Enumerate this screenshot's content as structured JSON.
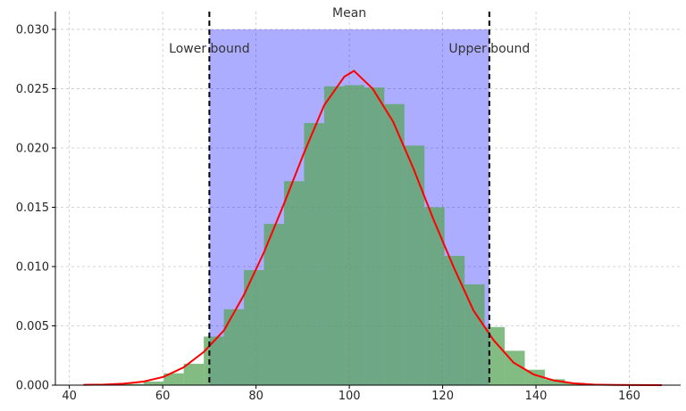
{
  "chart_data": {
    "type": "bar",
    "title": "",
    "xlabel": "",
    "ylabel": "",
    "xlim": [
      37,
      171
    ],
    "ylim": [
      0,
      0.0315
    ],
    "x_ticks": [
      40,
      60,
      80,
      100,
      120,
      140,
      160
    ],
    "y_ticks": [
      0.0,
      0.005,
      0.01,
      0.015,
      0.02,
      0.025,
      0.03
    ],
    "x_tick_labels": [
      "40",
      "60",
      "80",
      "100",
      "120",
      "140",
      "160"
    ],
    "y_tick_labels": [
      "0.000",
      "0.005",
      "0.010",
      "0.015",
      "0.020",
      "0.025",
      "0.030"
    ],
    "grid": true,
    "histogram": {
      "bin_edges": [
        43.0,
        47.3,
        51.6,
        55.9,
        60.2,
        64.5,
        68.8,
        73.1,
        77.4,
        81.7,
        86.0,
        90.3,
        94.6,
        98.9,
        103.2,
        107.5,
        111.8,
        116.1,
        120.4,
        124.7,
        129.0,
        133.3,
        137.6,
        141.9,
        146.2,
        150.5,
        154.8,
        159.1,
        163.4,
        167.7
      ],
      "density": [
        2e-05,
        5e-05,
        0.0001,
        0.0003,
        0.001,
        0.0018,
        0.0041,
        0.0064,
        0.0097,
        0.0136,
        0.0172,
        0.0221,
        0.0252,
        0.0253,
        0.0251,
        0.0237,
        0.0202,
        0.015,
        0.0109,
        0.0085,
        0.0049,
        0.0029,
        0.0013,
        0.0005,
        0.0002,
        0.0001,
        3e-05,
        1e-05,
        1e-05
      ],
      "color": "#5aa65a"
    },
    "series": [
      {
        "type": "line",
        "color": "#ff0000",
        "x": [
          43.0,
          47.3,
          51.6,
          55.9,
          60.2,
          64.5,
          68.8,
          73.1,
          77.4,
          81.7,
          86.0,
          90.3,
          94.6,
          98.9,
          101.0,
          105.0,
          109.4,
          113.7,
          118.0,
          122.3,
          126.6,
          130.9,
          135.2,
          139.5,
          143.8,
          148.1,
          152.4,
          156.7,
          161.0,
          167.0
        ],
        "y": [
          3e-05,
          5e-05,
          0.00012,
          0.0003,
          0.0007,
          0.0015,
          0.0028,
          0.0046,
          0.0076,
          0.0112,
          0.0153,
          0.0196,
          0.0236,
          0.026,
          0.0265,
          0.025,
          0.0222,
          0.0183,
          0.014,
          0.01,
          0.0063,
          0.0038,
          0.0019,
          0.0009,
          0.0004,
          0.00015,
          5e-05,
          2e-05,
          1e-05,
          0.0
        ]
      }
    ],
    "shaded_region": {
      "x_from": 70,
      "x_to": 130,
      "y_to": 0.03,
      "color": "#0000ff",
      "opacity": 0.32
    },
    "vlines": [
      {
        "x": 70,
        "style": "dashed",
        "color": "#000000"
      },
      {
        "x": 130,
        "style": "dashed",
        "color": "#000000"
      }
    ],
    "annotations": [
      {
        "text": "Mean",
        "x": 100,
        "y": 0.0315
      },
      {
        "text": "Lower bound",
        "x": 70,
        "y": 0.0285
      },
      {
        "text": "Upper bound",
        "x": 130,
        "y": 0.0285
      }
    ]
  }
}
